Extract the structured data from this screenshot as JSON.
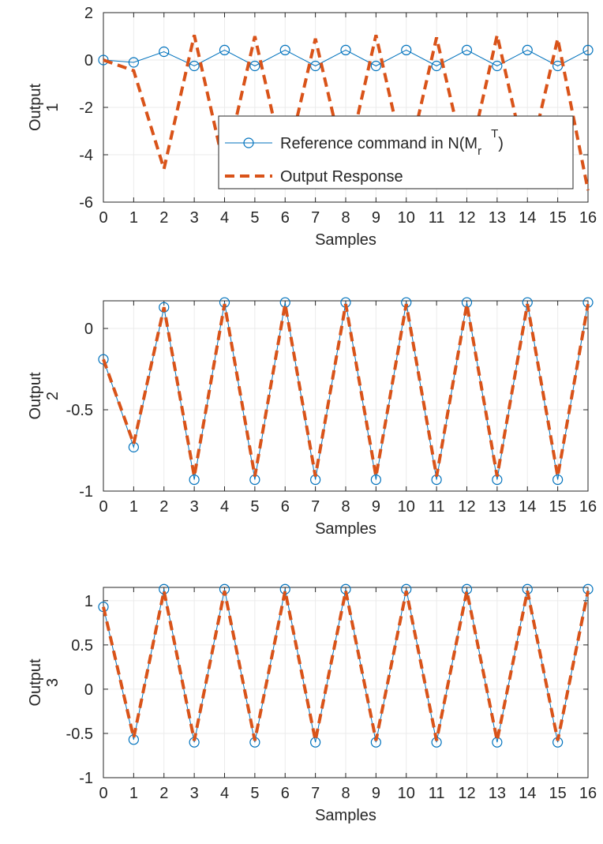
{
  "colors": {
    "reference": "#0072bd",
    "response": "#d95319",
    "axis": "#262626",
    "grid": "#ebebeb"
  },
  "legend": {
    "reference_label": "Reference command in N(M",
    "reference_sub": "r",
    "reference_sup": "T",
    "reference_close": ")",
    "response_label": "Output Response",
    "location": "inside, lower-right of first panel"
  },
  "chart_data": [
    {
      "type": "line",
      "xlabel": "Samples",
      "ylabel_line1": "Output",
      "ylabel_line2": "1",
      "xlim": [
        0,
        16
      ],
      "ylim": [
        -6,
        2
      ],
      "xticks": [
        0,
        1,
        2,
        3,
        4,
        5,
        6,
        7,
        8,
        9,
        10,
        11,
        12,
        13,
        14,
        15,
        16
      ],
      "yticks": [
        -6,
        -4,
        -2,
        0,
        2
      ],
      "ytick_labels": [
        "-6",
        "-4",
        "-2",
        "0",
        "2"
      ],
      "grid": true,
      "x": [
        0,
        1,
        2,
        3,
        4,
        5,
        6,
        7,
        8,
        9,
        10,
        11,
        12,
        13,
        14,
        15,
        16
      ],
      "series": [
        {
          "name": "Reference command in N(M_r^T)",
          "style": "solid-circle-markers",
          "values": [
            0.0,
            -0.1,
            0.35,
            -0.25,
            0.42,
            -0.25,
            0.42,
            -0.25,
            0.42,
            -0.25,
            0.42,
            -0.25,
            0.42,
            -0.25,
            0.42,
            -0.25,
            0.42
          ]
        },
        {
          "name": "Output Response",
          "style": "dashed",
          "values": [
            0.0,
            -0.45,
            -4.6,
            1.05,
            -4.6,
            1.0,
            -4.6,
            0.9,
            -4.6,
            1.05,
            -4.6,
            0.95,
            -4.6,
            1.05,
            -4.6,
            0.9,
            -5.5
          ]
        }
      ]
    },
    {
      "type": "line",
      "xlabel": "Samples",
      "ylabel_line1": "Output",
      "ylabel_line2": "2",
      "xlim": [
        0,
        16
      ],
      "ylim": [
        -1,
        0.17
      ],
      "xticks": [
        0,
        1,
        2,
        3,
        4,
        5,
        6,
        7,
        8,
        9,
        10,
        11,
        12,
        13,
        14,
        15,
        16
      ],
      "yticks": [
        -1,
        -0.5,
        0
      ],
      "ytick_labels": [
        "-1",
        "-0.5",
        "0"
      ],
      "grid": true,
      "x": [
        0,
        1,
        2,
        3,
        4,
        5,
        6,
        7,
        8,
        9,
        10,
        11,
        12,
        13,
        14,
        15,
        16
      ],
      "series": [
        {
          "name": "Reference command in N(M_r^T)",
          "style": "solid-circle-markers",
          "values": [
            -0.19,
            -0.73,
            0.13,
            -0.93,
            0.16,
            -0.93,
            0.16,
            -0.93,
            0.16,
            -0.93,
            0.16,
            -0.93,
            0.16,
            -0.93,
            0.16,
            -0.93,
            0.16
          ]
        },
        {
          "name": "Output Response",
          "style": "dashed",
          "values": [
            -0.19,
            -0.71,
            0.13,
            -0.91,
            0.15,
            -0.91,
            0.15,
            -0.91,
            0.15,
            -0.91,
            0.15,
            -0.91,
            0.15,
            -0.91,
            0.15,
            -0.91,
            0.15
          ]
        }
      ]
    },
    {
      "type": "line",
      "xlabel": "Samples",
      "ylabel_line1": "Output",
      "ylabel_line2": "3",
      "xlim": [
        0,
        16
      ],
      "ylim": [
        -1,
        1.15
      ],
      "xticks": [
        0,
        1,
        2,
        3,
        4,
        5,
        6,
        7,
        8,
        9,
        10,
        11,
        12,
        13,
        14,
        15,
        16
      ],
      "yticks": [
        -1,
        -0.5,
        0,
        0.5,
        1
      ],
      "ytick_labels": [
        "-1",
        "-0.5",
        "0",
        "0.5",
        "1"
      ],
      "grid": true,
      "x": [
        0,
        1,
        2,
        3,
        4,
        5,
        6,
        7,
        8,
        9,
        10,
        11,
        12,
        13,
        14,
        15,
        16
      ],
      "series": [
        {
          "name": "Reference command in N(M_r^T)",
          "style": "solid-circle-markers",
          "values": [
            0.93,
            -0.57,
            1.13,
            -0.6,
            1.13,
            -0.6,
            1.13,
            -0.6,
            1.13,
            -0.6,
            1.13,
            -0.6,
            1.13,
            -0.6,
            1.13,
            -0.6,
            1.13
          ]
        },
        {
          "name": "Output Response",
          "style": "dashed",
          "values": [
            0.93,
            -0.55,
            1.11,
            -0.58,
            1.11,
            -0.58,
            1.11,
            -0.58,
            1.11,
            -0.58,
            1.11,
            -0.58,
            1.11,
            -0.58,
            1.11,
            -0.58,
            1.11
          ]
        }
      ]
    }
  ]
}
